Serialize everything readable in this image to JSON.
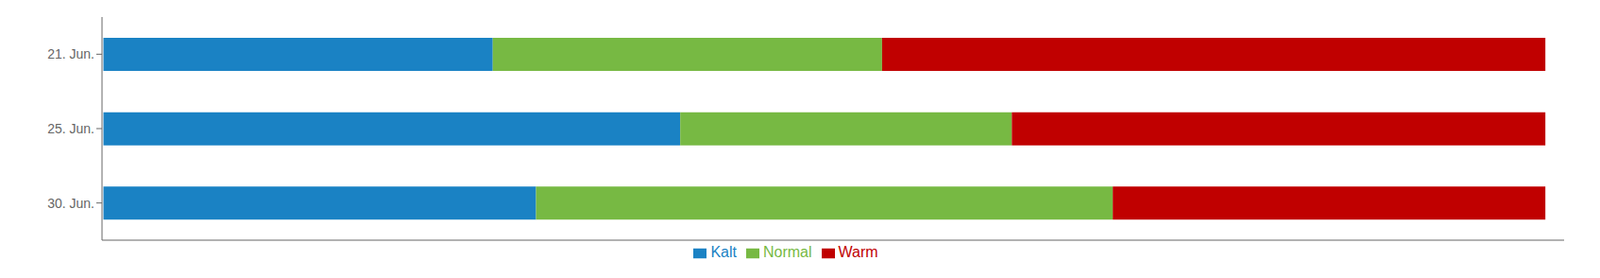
{
  "chart_data": {
    "type": "bar",
    "orientation": "horizontal",
    "stacked": true,
    "categories": [
      "21. Jun.",
      "25. Jun.",
      "30. Jun."
    ],
    "series": [
      {
        "name": "Kalt",
        "color": "#1a82c4",
        "values": [
          0.27,
          0.4,
          0.3
        ]
      },
      {
        "name": "Normal",
        "color": "#77b943",
        "values": [
          0.27,
          0.23,
          0.4
        ]
      },
      {
        "name": "Warm",
        "color": "#c00000",
        "values": [
          0.46,
          0.37,
          0.3
        ]
      }
    ],
    "xlim": [
      -0.001,
      1.013
    ],
    "tick_labels": "y",
    "legend": "bottom",
    "grid": false
  }
}
